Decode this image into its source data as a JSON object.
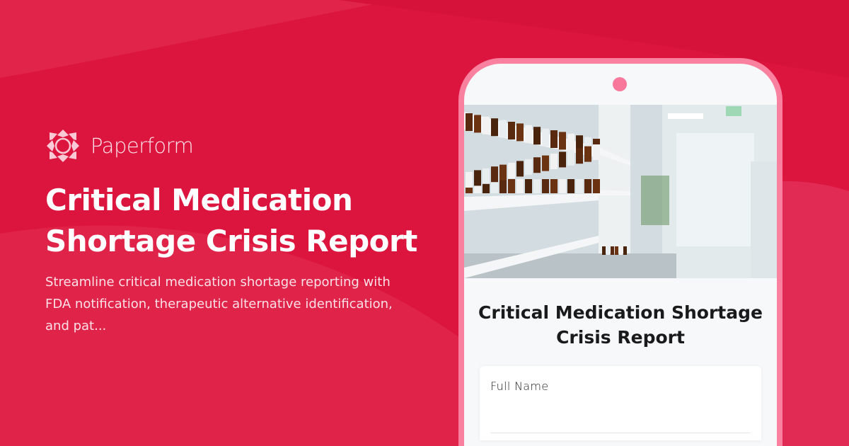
{
  "brand": {
    "name": "Paperform",
    "colors": {
      "background": "#dc153f",
      "phone_frame": "#f9819f",
      "logo": "#fde2ea"
    }
  },
  "hero": {
    "title": "Critical Medication Shortage Crisis Report",
    "description": "Streamline critical medication shortage reporting with FDA notification, therapeutic alternative identification, and pat..."
  },
  "phone": {
    "form_title": "Critical Medication Shortage Crisis Report",
    "image_subject": "pharmacy shelves with medication bottles",
    "fields": [
      {
        "label": "Full Name",
        "value": ""
      }
    ]
  }
}
